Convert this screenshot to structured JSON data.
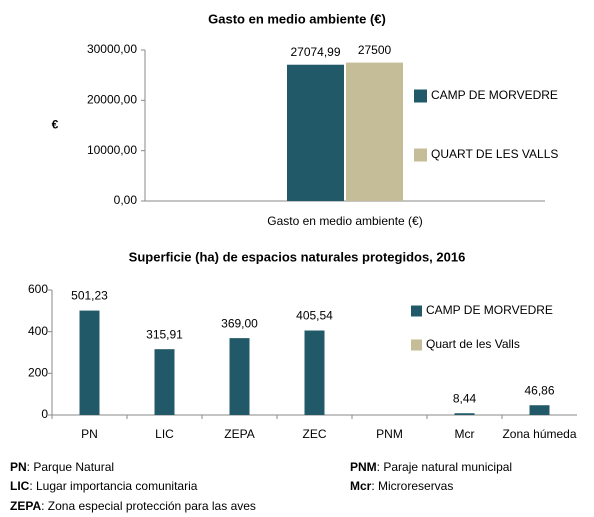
{
  "chart_data": [
    {
      "type": "bar",
      "title": "Gasto  en medio ambiente (€)",
      "categories": [
        "Gasto  en medio ambiente (€)"
      ],
      "y_label": "€",
      "series": [
        {
          "name": "CAMP DE MORVEDRE",
          "color": "#215968",
          "values": [
            27074.99
          ],
          "value_labels": [
            "27074,99"
          ]
        },
        {
          "name": "QUART DE LES VALLS",
          "color": "#c4bd97",
          "values": [
            27500
          ],
          "value_labels": [
            "27500"
          ]
        }
      ],
      "ylim": [
        0,
        30000
      ],
      "yticks": [
        {
          "value": 0,
          "label": "0,00"
        },
        {
          "value": 10000,
          "label": "10000,00"
        },
        {
          "value": 20000,
          "label": "20000,00"
        },
        {
          "value": 30000,
          "label": "30000,00"
        }
      ],
      "legend": "right"
    },
    {
      "type": "bar",
      "title": "Superficie (ha) de espacios naturales protegidos, 2016",
      "categories": [
        "PN",
        "LIC",
        "ZEPA",
        "ZEC",
        "PNM",
        "Mcr",
        "Zona húmeda"
      ],
      "series": [
        {
          "name": "CAMP DE MORVEDRE",
          "color": "#215968",
          "values": [
            501.23,
            315.91,
            369.0,
            405.54,
            null,
            8.44,
            46.86
          ],
          "value_labels": [
            "501,23",
            "315,91",
            "369,00",
            "405,54",
            null,
            "8,44",
            "46,86"
          ]
        },
        {
          "name": "Quart de les Valls",
          "color": "#c4bd97",
          "values": [
            null,
            null,
            null,
            null,
            null,
            null,
            null
          ]
        }
      ],
      "ylim": [
        0,
        600
      ],
      "yticks": [
        0,
        200,
        400,
        600
      ],
      "legend": "right"
    }
  ],
  "notes": [
    {
      "abbr": "PN",
      "text": ": Parque Natural"
    },
    {
      "abbr": "LIC",
      "text": ": Lugar importancia comunitaria"
    },
    {
      "abbr": "ZEPA",
      "text": ": Zona especial protección para las aves"
    },
    {
      "abbr": "PNM",
      "text": ": Paraje natural municipal"
    },
    {
      "abbr": "Mcr",
      "text": ": Microreservas"
    }
  ]
}
